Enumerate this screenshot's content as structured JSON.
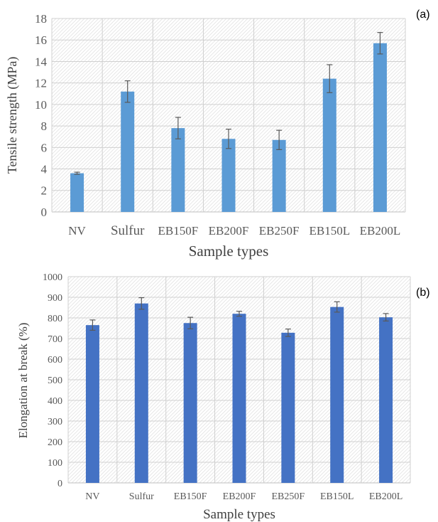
{
  "chart_data": [
    {
      "type": "bar",
      "panel_label": "(a)",
      "categories": [
        "NV",
        "Sulfur",
        "EB150F",
        "EB200F",
        "EB250F",
        "EB150L",
        "EB200L"
      ],
      "values": [
        3.6,
        11.2,
        7.8,
        6.8,
        6.7,
        12.4,
        15.7
      ],
      "errors": [
        0.1,
        1.0,
        1.0,
        0.9,
        0.9,
        1.3,
        1.0
      ],
      "xlabel": "Sample types",
      "ylabel": "Tensile strength (MPa)",
      "ylim": [
        0,
        18
      ],
      "yticks": [
        0,
        2,
        4,
        6,
        8,
        10,
        12,
        14,
        16,
        18
      ],
      "bar_color": "#5b9bd5",
      "plot_background": "diagonal hatch",
      "grid": true
    },
    {
      "type": "bar",
      "panel_label": "(b)",
      "categories": [
        "NV",
        "Sulfur",
        "EB150F",
        "EB200F",
        "EB250F",
        "EB150L",
        "EB200L"
      ],
      "values": [
        765,
        870,
        775,
        820,
        728,
        853,
        803
      ],
      "errors": [
        25,
        28,
        28,
        12,
        18,
        25,
        18
      ],
      "xlabel": "Sample types",
      "ylabel": "Elongation at break (%)",
      "ylim": [
        0,
        1000
      ],
      "yticks": [
        0,
        100,
        200,
        300,
        400,
        500,
        600,
        700,
        800,
        900,
        1000
      ],
      "bar_color": "#4472c4",
      "plot_background": "diagonal hatch",
      "grid": true
    }
  ]
}
